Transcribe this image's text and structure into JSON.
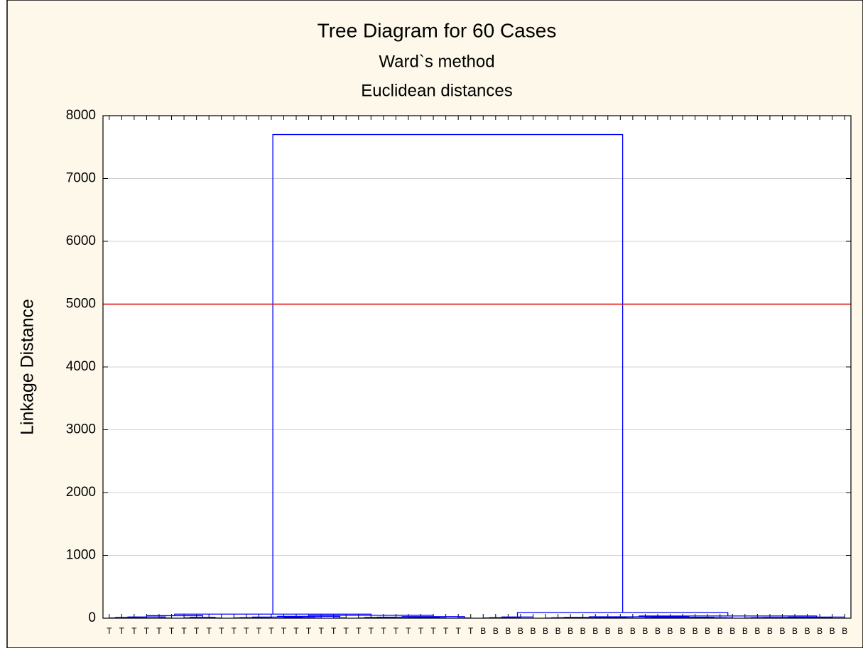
{
  "chart_data": {
    "type": "dendrogram",
    "title": "Tree Diagram for 60 Cases",
    "subtitle": [
      "Ward`s method",
      "Euclidean distances"
    ],
    "y_label": "Linkage Distance",
    "ylim": [
      0,
      8000
    ],
    "yticks": [
      0,
      1000,
      2000,
      3000,
      4000,
      5000,
      6000,
      7000,
      8000
    ],
    "grid": true,
    "color": "#0000ff",
    "reference_line": {
      "value": 5000,
      "color": "#e00000"
    },
    "categories": [
      "T",
      "T",
      "T",
      "T",
      "T",
      "T",
      "T",
      "T",
      "T",
      "T",
      "T",
      "T",
      "T",
      "T",
      "T",
      "T",
      "T",
      "T",
      "T",
      "T",
      "T",
      "T",
      "T",
      "T",
      "T",
      "T",
      "T",
      "T",
      "T",
      "T",
      "B",
      "B",
      "B",
      "B",
      "B",
      "B",
      "B",
      "B",
      "B",
      "B",
      "B",
      "B",
      "B",
      "B",
      "B",
      "B",
      "B",
      "B",
      "B",
      "B",
      "B",
      "B",
      "B",
      "B",
      "B",
      "B",
      "B",
      "B",
      "B",
      "B"
    ],
    "merges": [
      [
        0,
        1,
        4
      ],
      [
        2,
        3,
        5
      ],
      [
        4,
        5,
        3
      ],
      [
        6,
        7,
        6
      ],
      [
        8,
        9,
        4
      ],
      [
        60,
        61,
        12
      ],
      [
        63,
        64,
        14
      ],
      [
        65,
        62,
        20
      ],
      [
        67,
        66,
        40
      ],
      [
        10,
        11,
        5
      ],
      [
        12,
        13,
        3
      ],
      [
        14,
        15,
        6
      ],
      [
        16,
        17,
        4
      ],
      [
        18,
        19,
        5
      ],
      [
        69,
        70,
        10
      ],
      [
        71,
        72,
        11
      ],
      [
        74,
        75,
        18
      ],
      [
        76,
        73,
        30
      ],
      [
        20,
        21,
        4
      ],
      [
        22,
        23,
        6
      ],
      [
        24,
        25,
        3
      ],
      [
        26,
        27,
        5
      ],
      [
        28,
        29,
        4
      ],
      [
        78,
        79,
        12
      ],
      [
        80,
        81,
        9
      ],
      [
        83,
        84,
        16
      ],
      [
        85,
        82,
        25
      ],
      [
        77,
        86,
        45
      ],
      [
        68,
        87,
        65
      ],
      [
        30,
        31,
        4
      ],
      [
        32,
        33,
        5
      ],
      [
        89,
        90,
        10
      ],
      [
        91,
        34,
        20
      ],
      [
        35,
        36,
        3
      ],
      [
        37,
        38,
        4
      ],
      [
        39,
        40,
        5
      ],
      [
        41,
        42,
        3
      ],
      [
        43,
        44,
        4
      ],
      [
        45,
        46,
        6
      ],
      [
        47,
        48,
        3
      ],
      [
        49,
        50,
        5
      ],
      [
        51,
        52,
        4
      ],
      [
        53,
        54,
        3
      ],
      [
        55,
        56,
        5
      ],
      [
        57,
        58,
        4
      ],
      [
        93,
        94,
        8
      ],
      [
        95,
        96,
        9
      ],
      [
        97,
        98,
        10
      ],
      [
        99,
        100,
        8
      ],
      [
        101,
        102,
        9
      ],
      [
        103,
        104,
        7
      ],
      [
        105,
        106,
        14
      ],
      [
        107,
        108,
        15
      ],
      [
        109,
        110,
        13
      ],
      [
        111,
        112,
        22
      ],
      [
        113,
        59,
        18
      ],
      [
        114,
        115,
        35
      ],
      [
        92,
        116,
        90
      ],
      [
        88,
        117,
        7700
      ]
    ]
  }
}
